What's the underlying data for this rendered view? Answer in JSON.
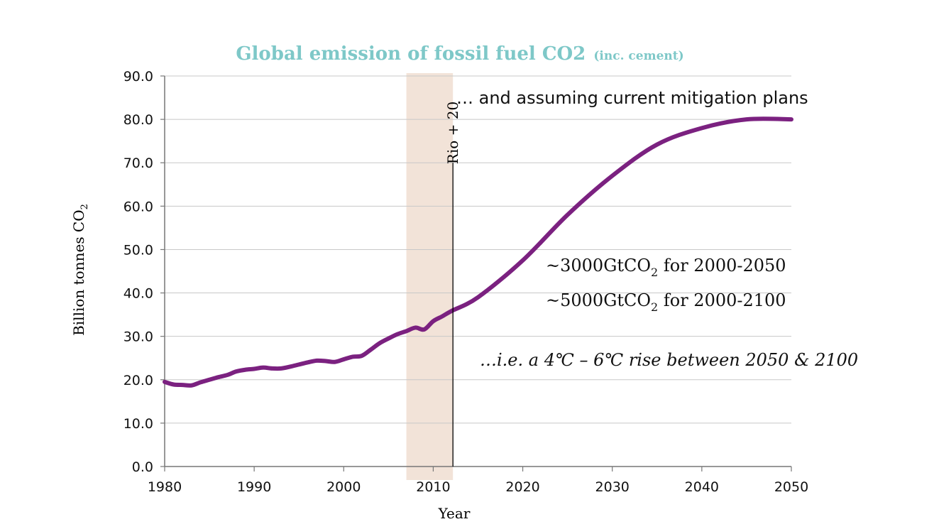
{
  "chart_data": {
    "type": "line",
    "title": "Global emission of fossil fuel CO2",
    "title_suffix": "(inc. cement)",
    "title_color": "#7ec8c8",
    "xlabel": "Year",
    "ylabel_main": "Billion tonnes CO",
    "ylabel_sub": "2",
    "xlim": [
      1980,
      2050
    ],
    "ylim": [
      0,
      90
    ],
    "x_ticks": [
      1980,
      1990,
      2000,
      2010,
      2020,
      2030,
      2040,
      2050
    ],
    "y_ticks": [
      "0.0",
      "10.0",
      "20.0",
      "30.0",
      "40.0",
      "50.0",
      "60.0",
      "70.0",
      "80.0",
      "90.0"
    ],
    "grid": true,
    "series": [
      {
        "color": "#7b2180",
        "x": [
          1980,
          1981,
          1982,
          1983,
          1984,
          1985,
          1986,
          1987,
          1988,
          1989,
          1990,
          1991,
          1992,
          1993,
          1994,
          1995,
          1996,
          1997,
          1998,
          1999,
          2000,
          2001,
          2002,
          2003,
          2004,
          2005,
          2006,
          2007,
          2008,
          2009,
          2010,
          2011,
          2012,
          2015,
          2020,
          2025,
          2030,
          2035,
          2040,
          2045,
          2050
        ],
        "y": [
          19.5,
          18.9,
          18.8,
          18.7,
          19.4,
          20.0,
          20.6,
          21.1,
          21.9,
          22.3,
          22.5,
          22.8,
          22.6,
          22.6,
          23.0,
          23.5,
          24.0,
          24.4,
          24.3,
          24.1,
          24.7,
          25.3,
          25.5,
          26.9,
          28.4,
          29.5,
          30.5,
          31.2,
          32.0,
          31.6,
          33.5,
          34.6,
          35.8,
          39.0,
          47.5,
          58.0,
          67.0,
          74.2,
          78.0,
          80.0,
          80.0
        ]
      }
    ],
    "highlight_band": {
      "x_start": 2007,
      "x_end": 2012.2,
      "color": "#f2e3d8"
    },
    "vline": {
      "x": 2012.2,
      "y_top": 70,
      "label": "Rio + 20"
    },
    "annotations": {
      "top_note": "… and assuming current mitigation plans",
      "budget1_prefix": "~3000GtCO",
      "budget1_sub": "2",
      "budget1_suffix": " for 2000-2050",
      "budget2_prefix": "~5000GtCO",
      "budget2_sub": "2",
      "budget2_suffix": " for 2000-2100",
      "rise_note": "…i.e. a 4℃ – 6℃ rise between 2050 & 2100"
    }
  }
}
